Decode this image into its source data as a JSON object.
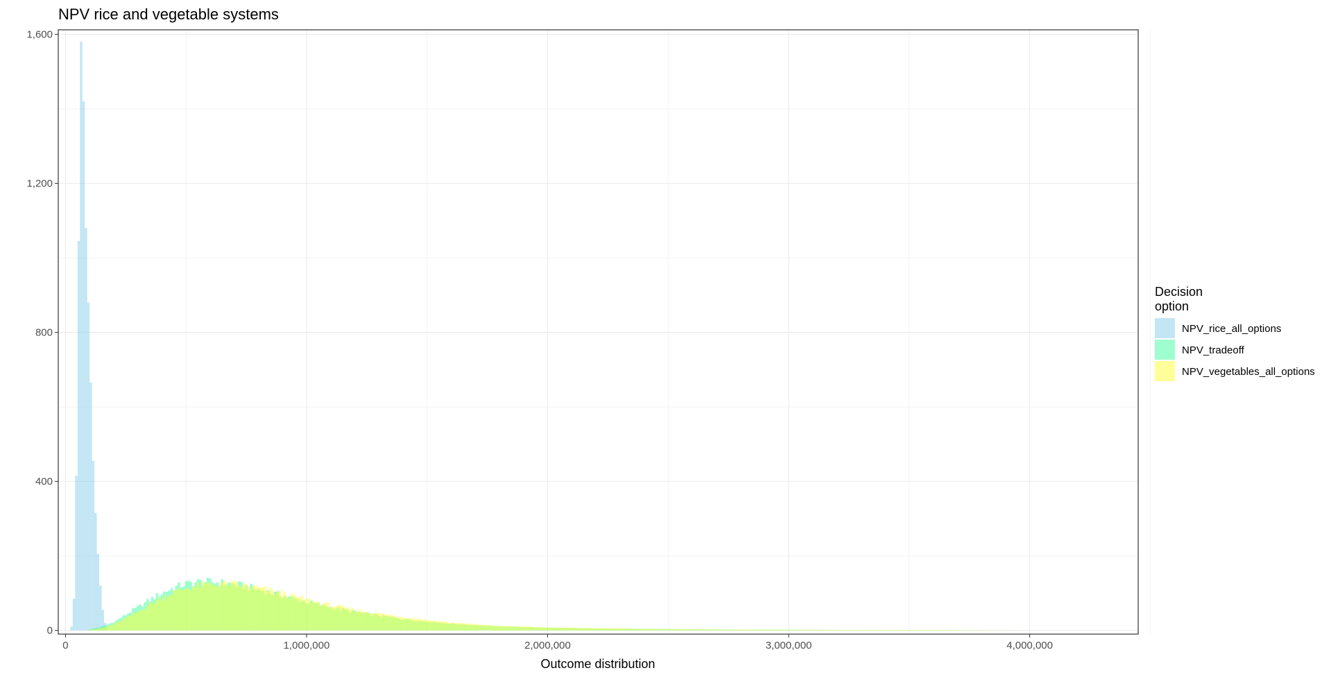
{
  "chart_data": {
    "type": "histogram",
    "title": "NPV rice and vegetable systems",
    "xlabel": "Outcome distribution",
    "ylabel": "",
    "xlim": [
      -30000,
      4450000
    ],
    "ylim": [
      -10,
      1612
    ],
    "x_ticks": [
      0,
      1000000,
      2000000,
      3000000,
      4000000
    ],
    "x_tick_labels": [
      "0",
      "1,000,000",
      "2,000,000",
      "3,000,000",
      "4,000,000"
    ],
    "y_ticks": [
      0,
      400,
      800,
      1200,
      1600
    ],
    "y_tick_labels": [
      "0",
      "400",
      "800",
      "1,200",
      "1,600"
    ],
    "grid": true,
    "bin_width": 10000,
    "legend": {
      "title": "Decision option",
      "title_lines": [
        "Decision",
        "option"
      ],
      "position": "right"
    },
    "series": [
      {
        "name": "NPV_rice_all_options",
        "color": "#87ceeb",
        "x": [
          25000,
          35000,
          45000,
          55000,
          65000,
          75000,
          85000,
          95000,
          105000,
          115000,
          125000,
          135000,
          145000,
          155000,
          165000
        ],
        "values": [
          10,
          85,
          415,
          1045,
          1580,
          1420,
          1080,
          880,
          665,
          455,
          315,
          205,
          120,
          55,
          20
        ]
      },
      {
        "name": "NPV_tradeoff",
        "color": "#3dfda0",
        "x": [
          100000,
          150000,
          200000,
          250000,
          300000,
          350000,
          400000,
          450000,
          500000,
          550000,
          600000,
          650000,
          700000,
          750000,
          800000,
          850000,
          900000,
          950000,
          1000000,
          1100000,
          1200000,
          1300000,
          1400000,
          1500000,
          1600000,
          1700000,
          1800000,
          1900000,
          2000000,
          2200000,
          2400000,
          2600000,
          2800000,
          3000000,
          3200000,
          3400000,
          3600000,
          4000000
        ],
        "values": [
          3,
          10,
          22,
          42,
          62,
          82,
          100,
          115,
          125,
          130,
          130,
          128,
          124,
          118,
          110,
          101,
          94,
          85,
          77,
          62,
          50,
          40,
          31,
          24,
          18,
          14,
          11,
          9,
          7,
          5,
          4,
          3,
          2,
          2,
          1,
          1,
          1,
          0
        ]
      },
      {
        "name": "NPV_vegetables_all_options",
        "color": "#ffff33",
        "x": [
          100000,
          150000,
          200000,
          250000,
          300000,
          350000,
          400000,
          450000,
          500000,
          550000,
          600000,
          650000,
          700000,
          750000,
          800000,
          850000,
          900000,
          950000,
          1000000,
          1100000,
          1200000,
          1300000,
          1400000,
          1500000,
          1600000,
          1700000,
          1800000,
          1900000,
          2000000,
          2200000,
          2400000,
          2600000,
          2800000,
          3000000,
          3200000,
          3400000,
          3600000,
          4000000
        ],
        "values": [
          2,
          6,
          16,
          32,
          50,
          70,
          88,
          103,
          113,
          120,
          124,
          125,
          123,
          119,
          113,
          106,
          98,
          90,
          82,
          67,
          55,
          45,
          36,
          28,
          21,
          16,
          12,
          10,
          8,
          6,
          4,
          3,
          2,
          2,
          1,
          1,
          1,
          0
        ]
      }
    ]
  }
}
